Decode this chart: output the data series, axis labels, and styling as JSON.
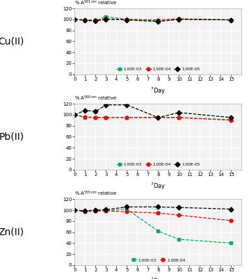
{
  "cu_days": [
    0,
    1,
    2,
    3,
    5,
    8,
    10,
    15
  ],
  "cu_1e3": [
    100,
    99,
    97,
    105,
    100,
    97,
    100,
    99
  ],
  "cu_1e4": [
    100,
    99,
    99,
    101,
    100,
    99,
    101,
    99
  ],
  "cu_1e5": [
    100,
    98,
    97,
    100,
    99,
    96,
    100,
    99
  ],
  "cu_nm": "561",
  "cu_ion": "Cu(II)",
  "pb_days": [
    0,
    1,
    2,
    3,
    5,
    8,
    10,
    15
  ],
  "pb_1e3": [
    100,
    95,
    95,
    95,
    95,
    95,
    95,
    91
  ],
  "pb_1e4": [
    100,
    96,
    95,
    95,
    95,
    95,
    95,
    90
  ],
  "pb_1e5": [
    100,
    108,
    106,
    118,
    118,
    95,
    104,
    95
  ],
  "pb_nm": "560",
  "pb_ion": "Pb(II)",
  "zn_days": [
    0,
    1,
    2,
    3,
    5,
    8,
    10,
    15
  ],
  "zn_1e3": [
    100,
    99,
    99,
    99,
    102,
    62,
    47,
    40
  ],
  "zn_1e4": [
    100,
    97,
    99,
    99,
    97,
    95,
    91,
    81
  ],
  "zn_1e5": [
    100,
    99,
    100,
    101,
    106,
    106,
    105,
    102
  ],
  "zn_nm": "555",
  "zn_ion": "Zn(II)",
  "color_1e3": "#00b050",
  "color_1e4": "#ff0000",
  "color_1e5": "#000000",
  "xlim": [
    0,
    16
  ],
  "ylim": [
    0,
    120
  ],
  "xticks": [
    0,
    1,
    2,
    3,
    4,
    5,
    6,
    7,
    8,
    9,
    10,
    11,
    12,
    13,
    14,
    15
  ],
  "yticks": [
    0,
    20,
    40,
    60,
    80,
    100,
    120
  ],
  "legend_1e3": "1.00E-03",
  "legend_1e4": "1.00E-04",
  "legend_1e5": "1.00E-05",
  "bg_color": "#f2f2f2",
  "grid_color": "#ffffff"
}
